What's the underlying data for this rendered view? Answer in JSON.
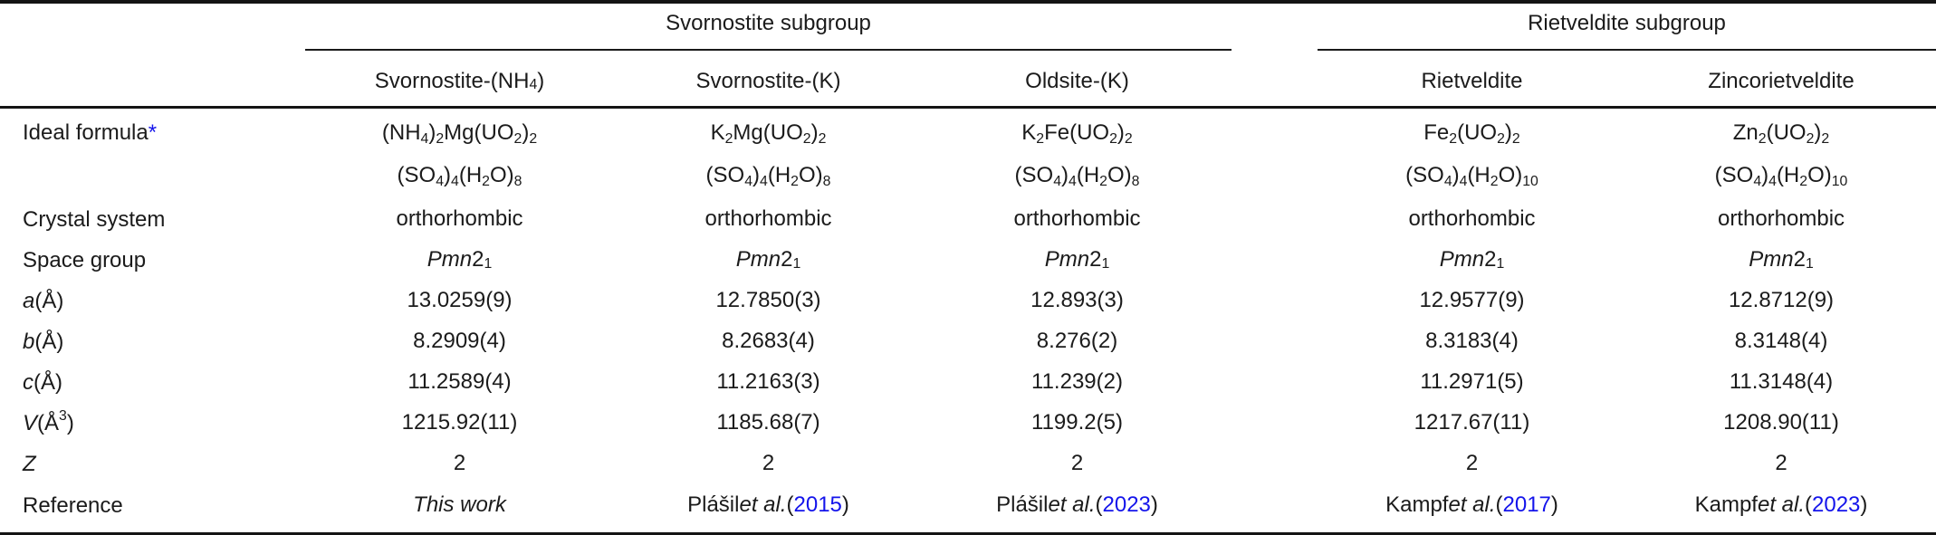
{
  "meta": {
    "text_color": "#1b1b1b",
    "link_color": "#1414eb",
    "rule_color": "#141414"
  },
  "table": {
    "subgroup_headers": [
      {
        "label": "Svornostite subgroup"
      },
      {
        "label": "Rietveldite subgroup"
      }
    ],
    "column_headers": [
      "Svornostite-(NH{4})",
      "Svornostite-(K)",
      "Oldsite-(K)",
      "Rietveldite",
      "Zincorietveldite"
    ],
    "rows": [
      {
        "name": "ideal-formula",
        "label": "Ideal formula[*]",
        "cells": [
          "(NH{4}){2}Mg(UO{2}){2}|(SO{4}){4}(H{2}O){8}",
          "K{2}Mg(UO{2}){2}|(SO{4}){4}(H{2}O){8}",
          "K{2}Fe(UO{2}){2}|(SO{4}){4}(H{2}O){8}",
          "Fe{2}(UO{2}){2}|(SO{4}){4}(H{2}O){10}",
          "Zn{2}(UO{2}){2}|(SO{4}){4}(H{2}O){10}"
        ]
      },
      {
        "name": "crystal-system",
        "label": "Crystal system",
        "cells": [
          "orthorhombic",
          "orthorhombic",
          "orthorhombic",
          "orthorhombic",
          "orthorhombic"
        ]
      },
      {
        "name": "space-group",
        "label": "Space group",
        "cells": [
          "*Pmn*2{1}",
          "*Pmn*2{1}",
          "*Pmn*2{1}",
          "*Pmn*2{1}",
          "*Pmn*2{1}"
        ]
      },
      {
        "name": "a-cell-length",
        "label": "*a* (Å)",
        "cells": [
          "13.0259(9)",
          "12.7850(3)",
          "12.893(3)",
          "12.9577(9)",
          "12.8712(9)"
        ]
      },
      {
        "name": "b-cell-length",
        "label": "*b* (Å)",
        "cells": [
          "8.2909(4)",
          "8.2683(4)",
          "8.276(2)",
          "8.3183(4)",
          "8.3148(4)"
        ]
      },
      {
        "name": "c-cell-length",
        "label": "*c* (Å)",
        "cells": [
          "11.2589(4)",
          "11.2163(3)",
          "11.239(2)",
          "11.2971(5)",
          "11.3148(4)"
        ]
      },
      {
        "name": "volume",
        "label": "*V* (Å^3^)",
        "cells": [
          "1215.92(11)",
          "1185.68(7)",
          "1199.2(5)",
          "1217.67(11)",
          "1208.90(11)"
        ]
      },
      {
        "name": "z",
        "label": "*Z*",
        "cells": [
          "2",
          "2",
          "2",
          "2",
          "2"
        ]
      },
      {
        "name": "reference",
        "label": "Reference",
        "cells": [
          "*This work*",
          "Plášil *et al.* ([2015])",
          "Plášil *et al.* ([2023])",
          "Kampf *et al.* ([2017])",
          "Kampf *et al.* ([2023])"
        ]
      }
    ]
  }
}
